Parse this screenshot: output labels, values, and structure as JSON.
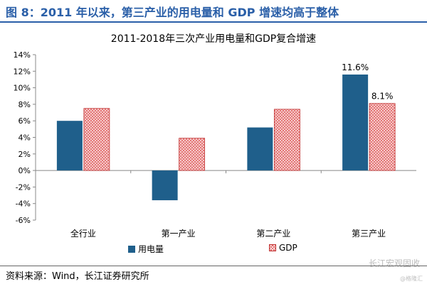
{
  "figure_title": "图 8：2011 年以来，第三产业的用电量和 GDP 增速均高于整体",
  "source": "资料来源：Wind，长江证券研究所",
  "watermark": "长江宏观固收",
  "corner_mark": "@格隆汇",
  "colors": {
    "title_blue": "#2a5fa8",
    "series_electricity": "#1f5f8b",
    "series_gdp": "#e06060"
  },
  "chart_data": {
    "type": "bar",
    "title": "2011-2018年三次产业用电量和GDP复合增速",
    "categories": [
      "全行业",
      "第一产业",
      "第二产业",
      "第三产业"
    ],
    "series": [
      {
        "name": "用电量",
        "values": [
          6.0,
          -3.6,
          5.2,
          11.6
        ]
      },
      {
        "name": "GDP",
        "values": [
          7.5,
          3.9,
          7.4,
          8.1
        ]
      }
    ],
    "data_labels": [
      {
        "series": 0,
        "category": 3,
        "text": "11.6%"
      },
      {
        "series": 1,
        "category": 3,
        "text": "8.1%"
      }
    ],
    "ylim": [
      -6,
      14
    ],
    "yticks": [
      -6,
      -4,
      -2,
      0,
      2,
      4,
      6,
      8,
      10,
      12,
      14
    ],
    "ytick_format": "percent",
    "legend_position": "bottom",
    "grid": false
  }
}
